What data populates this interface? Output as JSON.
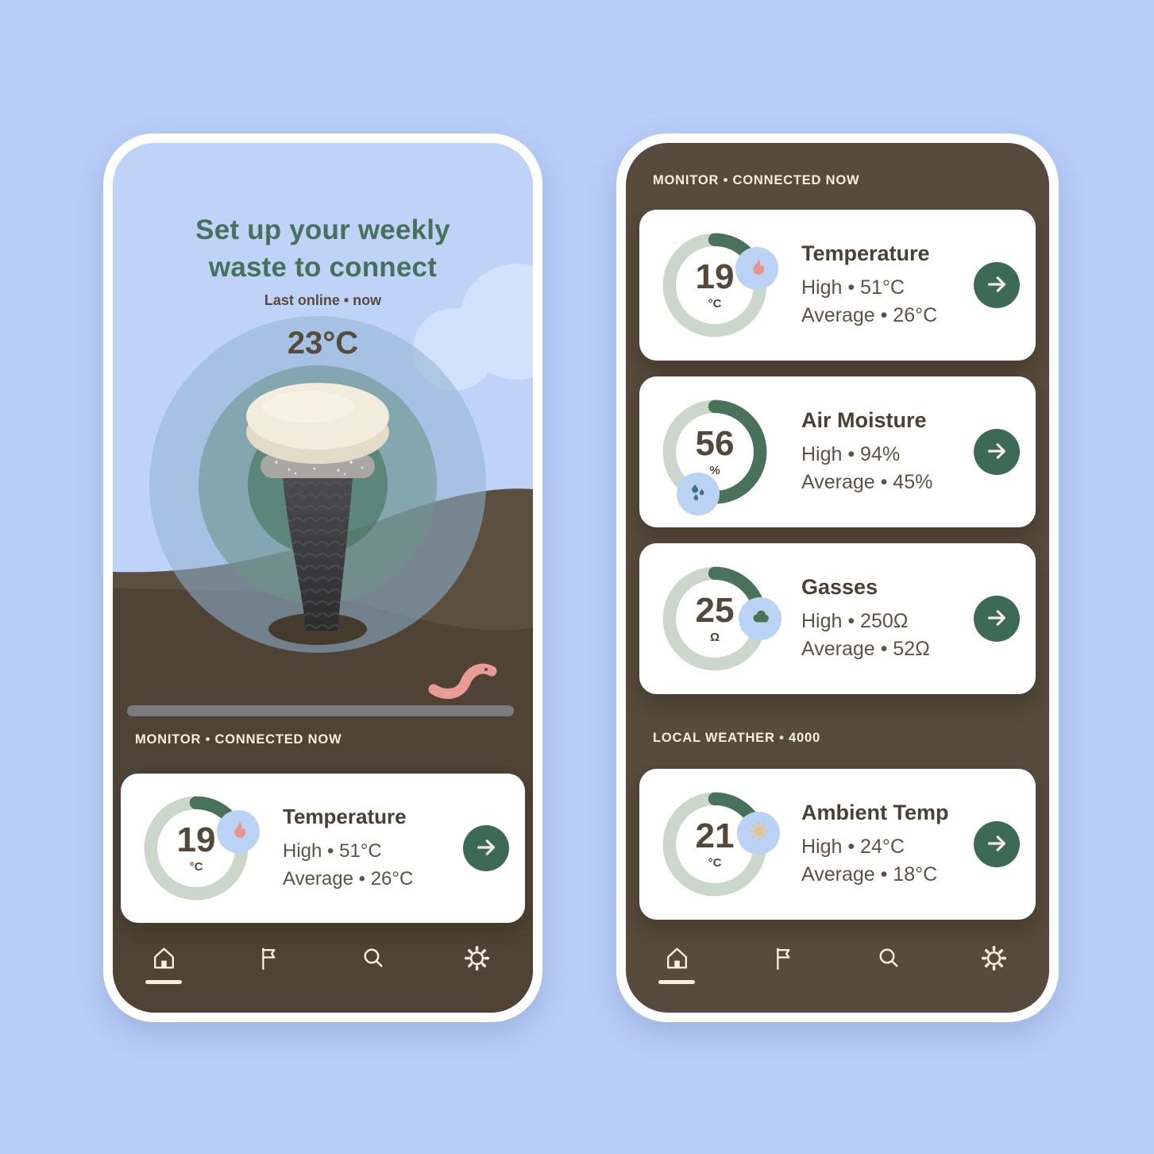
{
  "colors": {
    "page_bg": "#b8cdf8",
    "sky": "#bfd3f9",
    "frame": "#ffffff",
    "screen_brown": "#564b3c",
    "cream": "#f5efe2",
    "accent_green": "#45725a",
    "text_brown": "#574b3b",
    "card_title": "#4a4134",
    "card_line": "#5d5244",
    "ring_track": "#ccd7cc",
    "ring_fill": "#48735a",
    "badge_blue": "#bad2f4",
    "flame": "#e8948d",
    "water": "#3e6e90",
    "gas": "#477553",
    "sun": "#efc07f",
    "button_green": "#3c6a54",
    "progress": "#7c7b80"
  },
  "left_phone": {
    "hero": {
      "title_line1": "Set up your weekly",
      "title_line2": "waste to connect",
      "status": "Last online • now",
      "current_temp": "23°C"
    },
    "section_label": "MONITOR • CONNECTED NOW",
    "cards": [
      {
        "title": "Temperature",
        "value": "19",
        "unit": "°C",
        "percent": 19,
        "high": "High • 51°C",
        "average": "Average • 26°C",
        "icon": "flame-icon"
      }
    ],
    "nav": [
      {
        "id": "home",
        "icon": "home-icon",
        "active": true
      },
      {
        "id": "flag",
        "icon": "flag-icon",
        "active": false
      },
      {
        "id": "search",
        "icon": "search-icon",
        "active": false
      },
      {
        "id": "settings",
        "icon": "settings-icon",
        "active": false
      }
    ]
  },
  "right_phone": {
    "monitor_label": "MONITOR • CONNECTED NOW",
    "monitor_cards": [
      {
        "title": "Temperature",
        "value": "19",
        "unit": "°C",
        "percent": 19,
        "high": "High • 51°C",
        "average": "Average • 26°C",
        "icon": "flame-icon"
      },
      {
        "title": "Air Moisture",
        "value": "56",
        "unit": "%",
        "percent": 56,
        "high": "High • 94%",
        "average": "Average • 45%",
        "icon": "water-drops-icon"
      },
      {
        "title": "Gasses",
        "value": "25",
        "unit": "Ω",
        "percent": 25,
        "high": "High • 250Ω",
        "average": "Average • 52Ω",
        "icon": "gas-cloud-icon"
      }
    ],
    "weather_label": "LOCAL WEATHER • 4000",
    "weather_cards": [
      {
        "title": "Ambient Temp",
        "value": "21",
        "unit": "°C",
        "percent": 21,
        "high": "High • 24°C",
        "average": "Average • 18°C",
        "icon": "sun-icon"
      }
    ],
    "nav": [
      {
        "id": "home",
        "icon": "home-icon",
        "active": true
      },
      {
        "id": "flag",
        "icon": "flag-icon",
        "active": false
      },
      {
        "id": "search",
        "icon": "search-icon",
        "active": false
      },
      {
        "id": "settings",
        "icon": "settings-icon",
        "active": false
      }
    ]
  }
}
